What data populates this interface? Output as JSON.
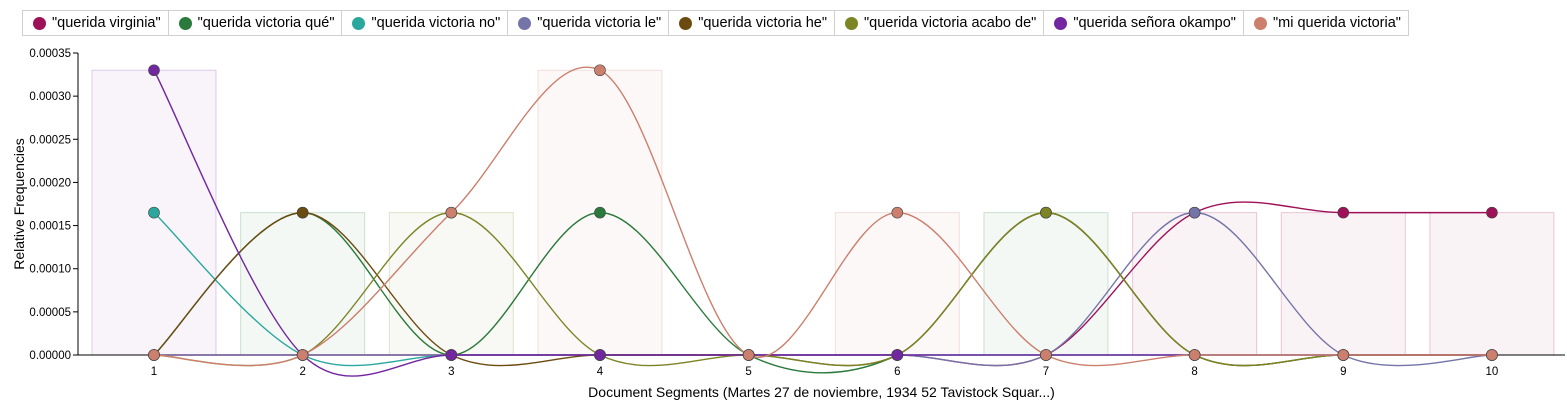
{
  "chart_data": {
    "type": "line",
    "xlabel": "Document Segments (Martes 27 de noviembre, 1934 52 Tavistock Squar...)",
    "ylabel": "Relative Frequencies",
    "ylim": [
      0,
      0.00035
    ],
    "yticks": [
      "0.00000",
      "0.00005",
      "0.00010",
      "0.00015",
      "0.00020",
      "0.00025",
      "0.00030",
      "0.00035"
    ],
    "x": [
      1,
      2,
      3,
      4,
      5,
      6,
      7,
      8,
      9,
      10
    ],
    "legend_position": "top",
    "series": [
      {
        "name": "\"querida virginia\"",
        "color": "#9e1158",
        "values": [
          0,
          0,
          0,
          0,
          0,
          0,
          0,
          0.000165,
          0.000165,
          0.000165
        ]
      },
      {
        "name": "\"querida victoria qué\"",
        "color": "#2a7a3b",
        "values": [
          0,
          0.000165,
          0,
          0.000165,
          0,
          0,
          0.000165,
          0,
          0,
          0
        ]
      },
      {
        "name": "\"querida victoria no\"",
        "color": "#2aa89e",
        "values": [
          0.000165,
          0,
          0,
          0,
          0,
          0,
          0,
          0,
          0,
          0
        ]
      },
      {
        "name": "\"querida victoria le\"",
        "color": "#7474a8",
        "values": [
          0,
          0,
          0,
          0,
          0,
          0,
          0,
          0.000165,
          0,
          0
        ]
      },
      {
        "name": "\"querida victoria he\"",
        "color": "#6b4b10",
        "values": [
          0,
          0.000165,
          0,
          0,
          0,
          0,
          0.000165,
          0,
          0,
          0
        ]
      },
      {
        "name": "\"querida victoria acabo de\"",
        "color": "#7c8424",
        "values": [
          0,
          0,
          0.000165,
          0,
          0,
          0,
          0.000165,
          0,
          0,
          0
        ]
      },
      {
        "name": "\"querida señora okampo\"",
        "color": "#7226a0",
        "values": [
          0.00033,
          0,
          0,
          0,
          0,
          0,
          0,
          0,
          0,
          0
        ]
      },
      {
        "name": "\"mi querida victoria\"",
        "color": "#cc7f6c",
        "values": [
          0,
          0,
          0.000165,
          0.00033,
          0,
          0.000165,
          0,
          0,
          0,
          0
        ]
      }
    ]
  }
}
